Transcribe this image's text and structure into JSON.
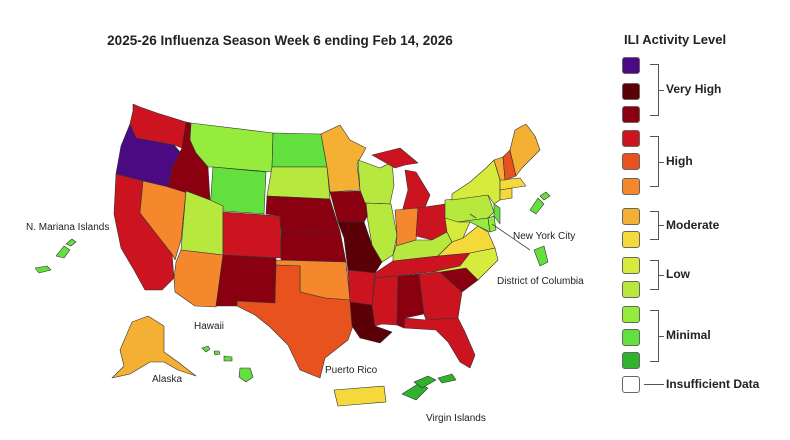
{
  "title": "2025-26 Influenza Season Week 6 ending Feb 14, 2026",
  "labels": {
    "mariana": "N. Mariana Islands",
    "nyc": "New York City",
    "dc": "District of Columbia",
    "hawaii": "Hawaii",
    "alaska": "Alaska",
    "puerto_rico": "Puerto Rico",
    "virgin_islands": "Virgin Islands"
  },
  "legend": {
    "title": "ILI Activity Level",
    "swatches": [
      "#4b0a82",
      "#5a0006",
      "#8a0010",
      "#cc1420",
      "#e8521e",
      "#f5872c",
      "#f4b032",
      "#f5d83a",
      "#d7eb3c",
      "#b7e83e",
      "#95ec3c",
      "#63df3e",
      "#2fb22c",
      "#ffffff"
    ],
    "groups": [
      "Very High",
      "High",
      "Moderate",
      "Low",
      "Minimal"
    ],
    "no_data": "Insufficient Data"
  },
  "palette": {
    "very_high_3": "#4b0a82",
    "very_high_2": "#5a0006",
    "very_high_1": "#8a0010",
    "high_3": "#cc1420",
    "high_2": "#e8521e",
    "high_1": "#f5872c",
    "moderate_2": "#f4b032",
    "moderate_1": "#f5d83a",
    "low_2": "#d7eb3c",
    "low_1": "#b7e83e",
    "minimal_3": "#95ec3c",
    "minimal_2": "#63df3e",
    "minimal_1": "#2fb22c"
  },
  "states": {
    "WA": "#cc1420",
    "OR": "#4b0a82",
    "CA": "#cc1420",
    "NV": "#f5872c",
    "ID": "#8a0010",
    "MT": "#95ec3c",
    "WY": "#63df3e",
    "UT": "#b7e83e",
    "AZ": "#f5872c",
    "CO": "#cc1420",
    "NM": "#8a0010",
    "ND": "#63df3e",
    "SD": "#b7e83e",
    "NE": "#8a0010",
    "KS": "#8a0010",
    "OK": "#f5872c",
    "TX": "#e8521e",
    "MN": "#f4b032",
    "IA": "#8a0010",
    "MO": "#5a0006",
    "AR": "#cc1420",
    "LA": "#5a0006",
    "WI": "#b7e83e",
    "IL": "#b7e83e",
    "MI": "#cc1420",
    "IN": "#f5872c",
    "OH": "#cc1420",
    "KY": "#b7e83e",
    "TN": "#cc1420",
    "MS": "#cc1420",
    "AL": "#8a0010",
    "GA": "#cc1420",
    "FL": "#cc1420",
    "SC": "#8a0010",
    "NC": "#d7eb3c",
    "VA": "#f5d83a",
    "WV": "#d7eb3c",
    "PA": "#b7e83e",
    "NY": "#d7eb3c",
    "VT": "#f4b032",
    "NH": "#e8521e",
    "ME": "#f4b032",
    "MA": "#f5d83a",
    "CT": "#f5d83a",
    "NJ": "#63df3e",
    "MD": "#95ec3c",
    "DE": "#95ec3c",
    "AK": "#f4b032",
    "HI": "#63df3e",
    "PR": "#f5d83a",
    "VI": "#2fb22c",
    "MP": "#63df3e",
    "NYC": "#63df3e",
    "DC": "#63df3e"
  }
}
